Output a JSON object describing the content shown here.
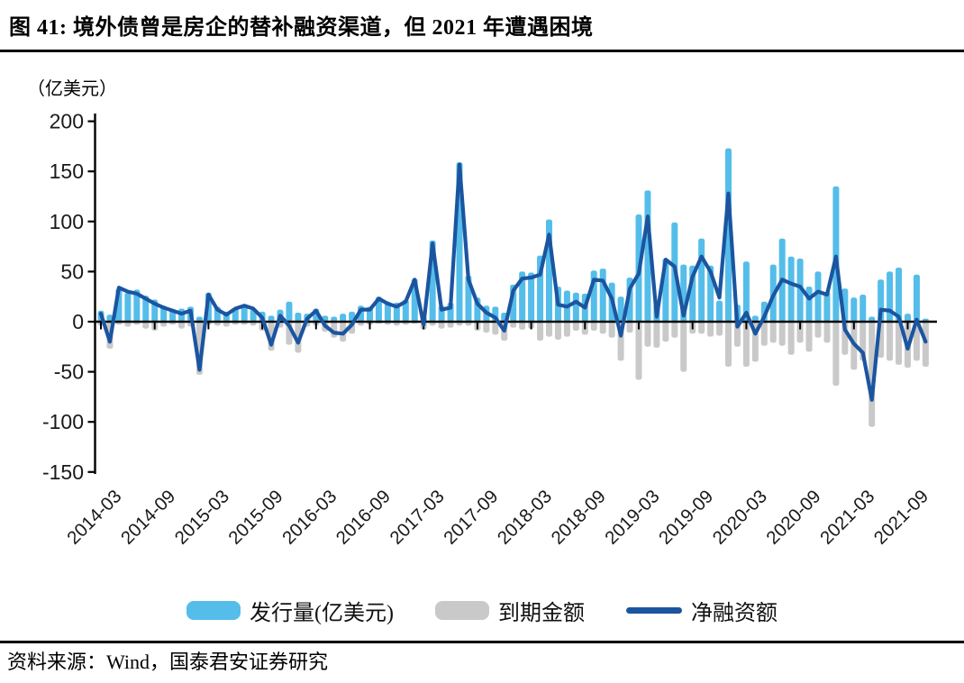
{
  "header": {
    "title": "图 41: 境外债曾是房企的替补融资渠道，但 2021 年遭遇困境"
  },
  "footer": {
    "source": "资料来源：Wind，国泰君安证券研究"
  },
  "colors": {
    "issuance": "#55BDE9",
    "maturity": "#C9C9C9",
    "net": "#1B55A0",
    "axis": "#000000"
  },
  "legend": {
    "issuance_label": "发行量(亿美元)",
    "maturity_label": "到期金额",
    "net_label": "净融资额"
  },
  "chart_data": {
    "type": "combo-bar-line",
    "title": "",
    "ylabel": "（亿美元）",
    "xlabel": "",
    "ylim": [
      -150,
      200
    ],
    "yticks": [
      200,
      150,
      100,
      50,
      0,
      -50,
      -100,
      -150
    ],
    "grid": false,
    "legend_position": "bottom",
    "x_tick_labels": [
      "2014-03",
      "2014-09",
      "2015-03",
      "2015-09",
      "2016-03",
      "2016-09",
      "2017-03",
      "2017-09",
      "2018-03",
      "2018-09",
      "2019-03",
      "2019-09",
      "2020-03",
      "2020-09",
      "2021-03",
      "2021-09"
    ],
    "categories": [
      "2014-03",
      "2014-04",
      "2014-05",
      "2014-06",
      "2014-07",
      "2014-08",
      "2014-09",
      "2014-10",
      "2014-11",
      "2014-12",
      "2015-01",
      "2015-02",
      "2015-03",
      "2015-04",
      "2015-05",
      "2015-06",
      "2015-07",
      "2015-08",
      "2015-09",
      "2015-10",
      "2015-11",
      "2015-12",
      "2016-01",
      "2016-02",
      "2016-03",
      "2016-04",
      "2016-05",
      "2016-06",
      "2016-07",
      "2016-08",
      "2016-09",
      "2016-10",
      "2016-11",
      "2016-12",
      "2017-01",
      "2017-02",
      "2017-03",
      "2017-04",
      "2017-05",
      "2017-06",
      "2017-07",
      "2017-08",
      "2017-09",
      "2017-10",
      "2017-11",
      "2017-12",
      "2018-01",
      "2018-02",
      "2018-03",
      "2018-04",
      "2018-05",
      "2018-06",
      "2018-07",
      "2018-08",
      "2018-09",
      "2018-10",
      "2018-11",
      "2018-12",
      "2019-01",
      "2019-02",
      "2019-03",
      "2019-04",
      "2019-05",
      "2019-06",
      "2019-07",
      "2019-08",
      "2019-09",
      "2019-10",
      "2019-11",
      "2019-12",
      "2020-01",
      "2020-02",
      "2020-03",
      "2020-04",
      "2020-05",
      "2020-06",
      "2020-07",
      "2020-08",
      "2020-09",
      "2020-10",
      "2020-11",
      "2020-12",
      "2021-01",
      "2021-02",
      "2021-03",
      "2021-04",
      "2021-05",
      "2021-06",
      "2021-07",
      "2021-08",
      "2021-09",
      "2021-10",
      "2021-11"
    ],
    "series": [
      {
        "name": "发行量(亿美元)",
        "type": "bar",
        "values": [
          11,
          7,
          33,
          29,
          32,
          26,
          22,
          16,
          11,
          13,
          15,
          5,
          29,
          15,
          10,
          13,
          17,
          12,
          10,
          6,
          12,
          20,
          9,
          8,
          13,
          6,
          5,
          8,
          10,
          16,
          15,
          25,
          20,
          19,
          22,
          43,
          5,
          81,
          16,
          19,
          159,
          46,
          24,
          16,
          15,
          9,
          37,
          50,
          49,
          66,
          102,
          35,
          31,
          29,
          28,
          51,
          53,
          39,
          25,
          44,
          107,
          131,
          18,
          63,
          99,
          57,
          56,
          83,
          56,
          21,
          173,
          17,
          60,
          6,
          20,
          57,
          83,
          65,
          63,
          35,
          50,
          30,
          135,
          33,
          24,
          27,
          5,
          42,
          50,
          54,
          8,
          47,
          3
        ]
      },
      {
        "name": "到期金额",
        "type": "bar",
        "values": [
          -4,
          -27,
          -3,
          -5,
          -3,
          -7,
          -9,
          -5,
          -3,
          -7,
          -5,
          -53,
          -3,
          -4,
          -5,
          -3,
          -3,
          -4,
          -9,
          -29,
          -6,
          -23,
          -31,
          -5,
          -4,
          -10,
          -16,
          -20,
          -12,
          -4,
          -3,
          -2,
          -3,
          -4,
          -3,
          -2,
          -8,
          -4,
          -7,
          -6,
          -4,
          -4,
          -9,
          -11,
          -13,
          -19,
          -6,
          -8,
          -7,
          -19,
          -15,
          -18,
          -15,
          -9,
          -13,
          -9,
          -12,
          -16,
          -39,
          -11,
          -58,
          -25,
          -26,
          -20,
          -16,
          -50,
          -12,
          -12,
          -15,
          -14,
          -45,
          -25,
          -45,
          -40,
          -24,
          -21,
          -24,
          -33,
          -21,
          -30,
          -16,
          -21,
          -64,
          -33,
          -48,
          -39,
          -105,
          -36,
          -39,
          -43,
          -46,
          -39,
          -45
        ]
      },
      {
        "name": "净融资额",
        "type": "line",
        "values": [
          8,
          -20,
          34,
          30,
          28,
          23,
          18,
          14,
          11,
          8,
          11,
          -48,
          27,
          12,
          7,
          13,
          16,
          13,
          4,
          -23,
          6,
          -4,
          -21,
          3,
          11,
          -4,
          -11,
          -12,
          -3,
          12,
          12,
          23,
          18,
          15,
          20,
          42,
          -3,
          78,
          12,
          14,
          157,
          42,
          18,
          9,
          4,
          -9,
          31,
          43,
          44,
          47,
          87,
          17,
          15,
          20,
          14,
          42,
          41,
          23,
          -14,
          33,
          48,
          105,
          5,
          62,
          55,
          6,
          45,
          65,
          50,
          24,
          128,
          -5,
          9,
          -12,
          5,
          26,
          42,
          38,
          35,
          23,
          30,
          27,
          65,
          -8,
          -22,
          -31,
          -78,
          12,
          11,
          5,
          -27,
          2,
          -20
        ]
      }
    ]
  }
}
